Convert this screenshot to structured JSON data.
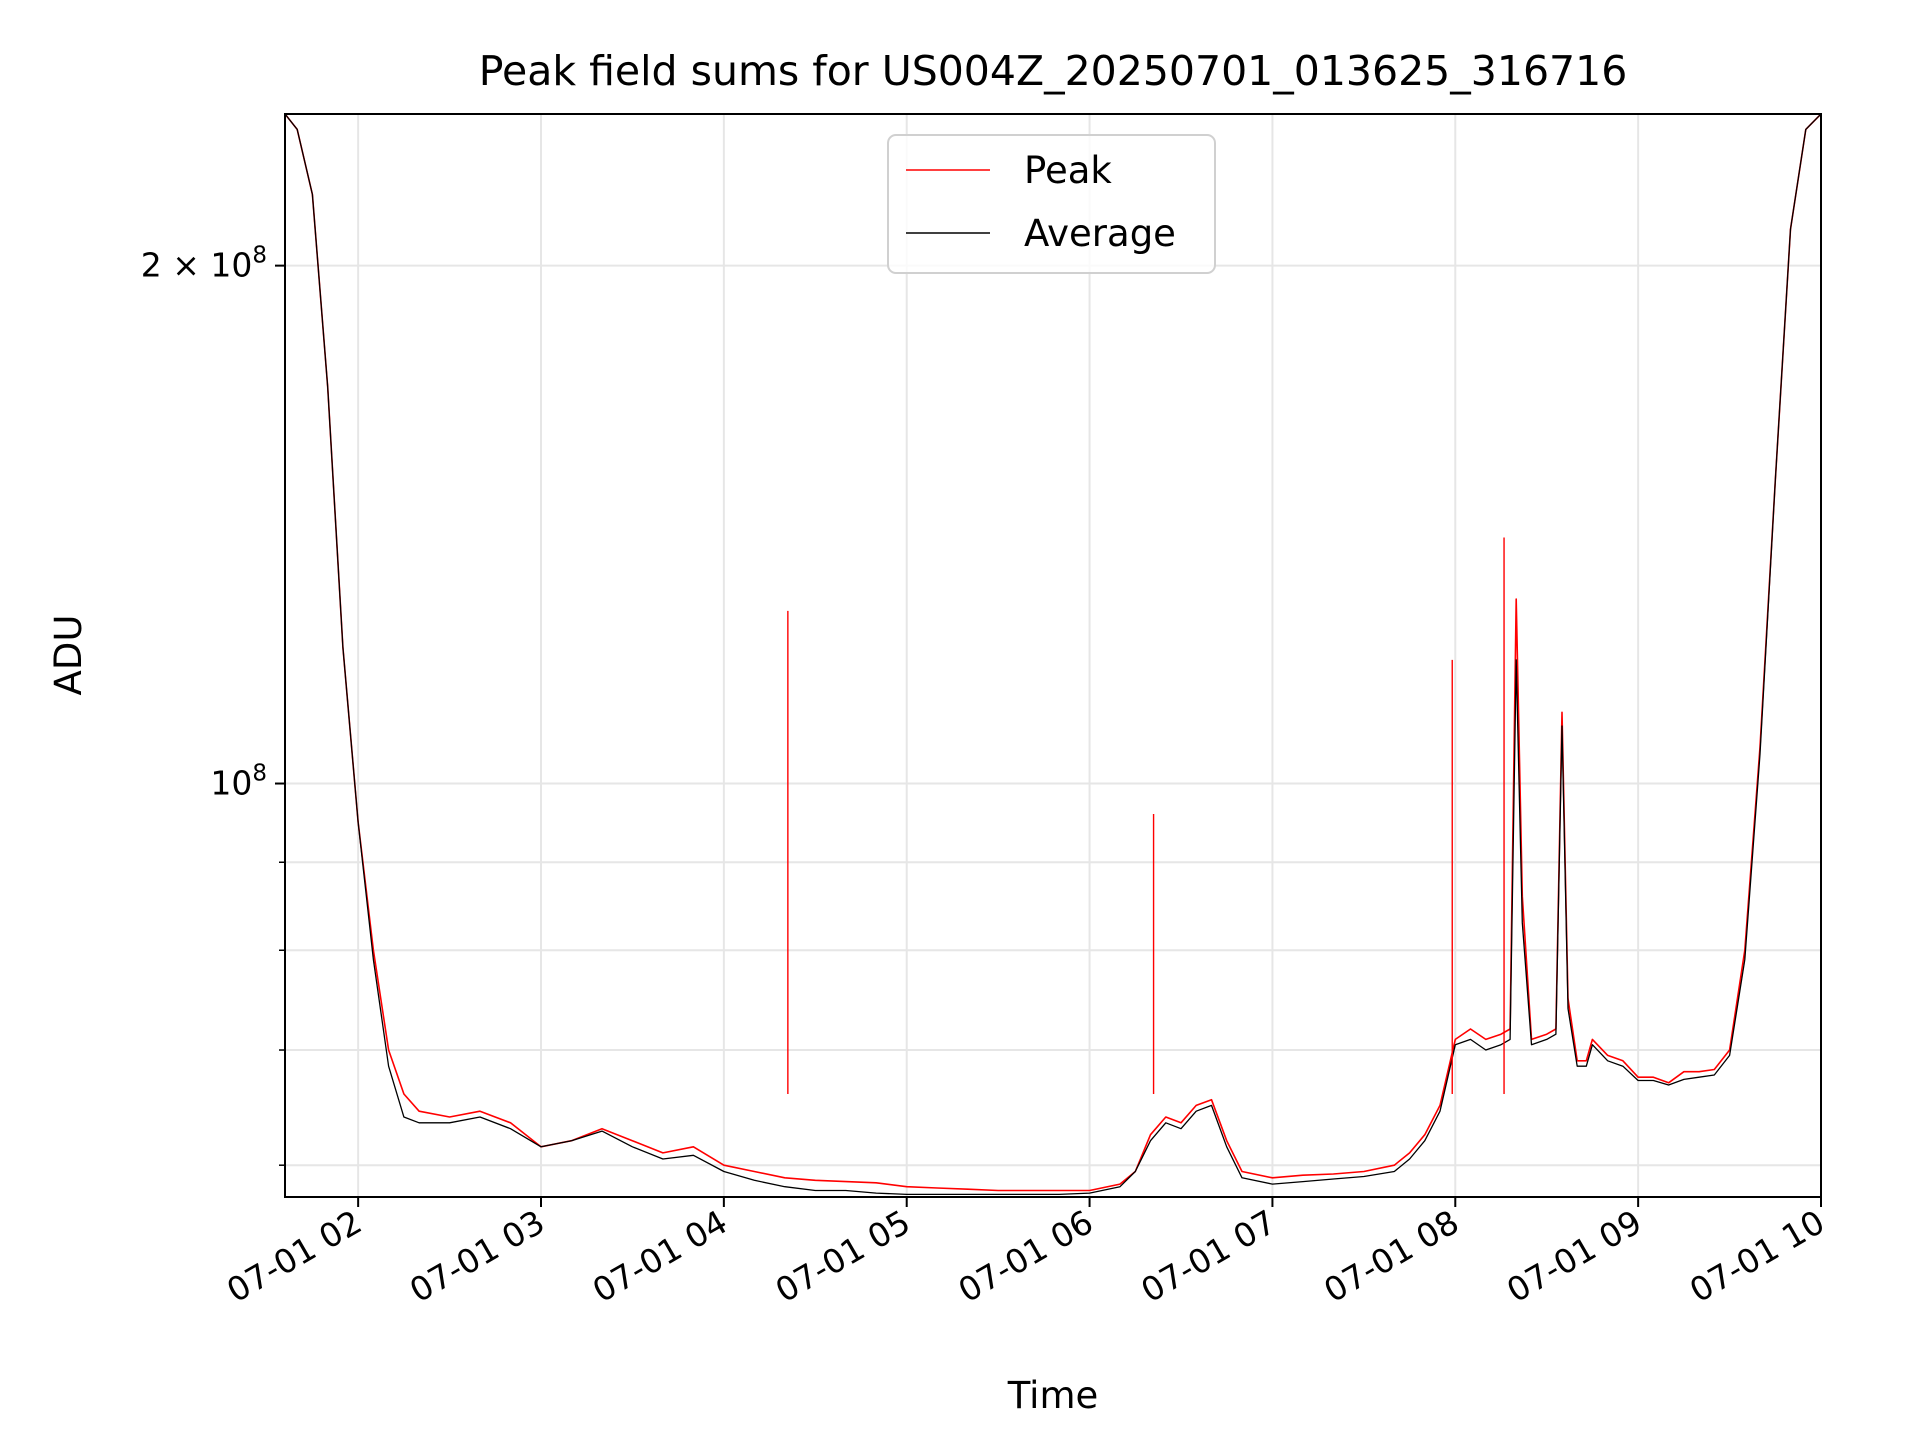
{
  "chart_data": {
    "type": "line",
    "title": "Peak field sums for US004Z_20250701_013625_316716",
    "xlabel": "Time",
    "ylabel": "ADU",
    "yscale": "log",
    "grid": true,
    "legend_position": "top-center",
    "xlim": [
      "07-01 01:36",
      "07-01 10:00"
    ],
    "ylim": [
      57500000,
      245000000
    ],
    "x_ticks": [
      "07-01 02:00",
      "07-01 03:00",
      "07-01 04:00",
      "07-01 05:00",
      "07-01 06:00",
      "07-01 07:00",
      "07-01 08:00",
      "07-01 09:00",
      "07-01 10:00"
    ],
    "x_tick_labels": [
      "07-01 02",
      "07-01 03",
      "07-01 04",
      "07-01 05",
      "07-01 06",
      "07-01 07",
      "07-01 08",
      "07-01 09",
      "07-01 10"
    ],
    "y_ticks_major": [
      100000000,
      200000000
    ],
    "y_tick_labels": {
      "base": "10",
      "major": [
        {
          "mantissa": "",
          "exp": "8"
        },
        {
          "mantissa": "2",
          "exp": "8"
        }
      ]
    },
    "y_ticks_minor": [
      60000000,
      70000000,
      80000000,
      90000000
    ],
    "series": [
      {
        "name": "Peak",
        "color": "#ff0000",
        "x": [
          "07-01 01:36",
          "07-01 01:40",
          "07-01 01:45",
          "07-01 01:50",
          "07-01 01:55",
          "07-01 02:00",
          "07-01 02:05",
          "07-01 02:10",
          "07-01 02:15",
          "07-01 02:20",
          "07-01 02:30",
          "07-01 02:40",
          "07-01 02:50",
          "07-01 03:00",
          "07-01 03:10",
          "07-01 03:20",
          "07-01 03:30",
          "07-01 03:40",
          "07-01 03:50",
          "07-01 04:00",
          "07-01 04:10",
          "07-01 04:20",
          "07-01 04:30",
          "07-01 04:40",
          "07-01 04:50",
          "07-01 05:00",
          "07-01 05:10",
          "07-01 05:20",
          "07-01 05:30",
          "07-01 05:40",
          "07-01 05:50",
          "07-01 06:00",
          "07-01 06:10",
          "07-01 06:15",
          "07-01 06:20",
          "07-01 06:25",
          "07-01 06:30",
          "07-01 06:35",
          "07-01 06:40",
          "07-01 06:45",
          "07-01 06:50",
          "07-01 07:00",
          "07-01 07:10",
          "07-01 07:20",
          "07-01 07:30",
          "07-01 07:40",
          "07-01 07:45",
          "07-01 07:50",
          "07-01 07:55",
          "07-01 08:00",
          "07-01 08:05",
          "07-01 08:10",
          "07-01 08:15",
          "07-01 08:18",
          "07-01 08:20",
          "07-01 08:22",
          "07-01 08:25",
          "07-01 08:30",
          "07-01 08:33",
          "07-01 08:35",
          "07-01 08:37",
          "07-01 08:40",
          "07-01 08:43",
          "07-01 08:45",
          "07-01 08:50",
          "07-01 08:55",
          "07-01 09:00",
          "07-01 09:05",
          "07-01 09:10",
          "07-01 09:15",
          "07-01 09:20",
          "07-01 09:25",
          "07-01 09:30",
          "07-01 09:35",
          "07-01 09:40",
          "07-01 09:45",
          "07-01 09:50",
          "07-01 09:55",
          "07-01 10:00"
        ],
        "y": [
          245000000,
          240000000,
          220000000,
          170000000,
          120000000,
          95000000,
          80000000,
          70000000,
          66000000,
          64500000,
          64000000,
          64500000,
          63500000,
          61500000,
          62000000,
          63000000,
          62000000,
          61000000,
          61500000,
          60000000,
          59500000,
          59000000,
          58800000,
          58700000,
          58600000,
          58300000,
          58200000,
          58100000,
          58000000,
          58000000,
          58000000,
          58000000,
          58500000,
          59500000,
          62500000,
          64000000,
          63500000,
          65000000,
          65500000,
          62000000,
          59500000,
          59000000,
          59200000,
          59300000,
          59500000,
          60000000,
          61000000,
          62500000,
          65000000,
          71000000,
          72000000,
          71000000,
          71500000,
          72000000,
          128000000,
          86000000,
          71000000,
          71500000,
          72000000,
          110000000,
          75000000,
          69000000,
          69000000,
          71000000,
          69500000,
          69000000,
          67500000,
          67500000,
          67000000,
          68000000,
          68000000,
          68200000,
          70000000,
          80000000,
          105000000,
          150000000,
          210000000,
          240000000,
          245000000
        ]
      },
      {
        "name": "Average",
        "color": "#000000",
        "x": [
          "07-01 01:36",
          "07-01 01:40",
          "07-01 01:45",
          "07-01 01:50",
          "07-01 01:55",
          "07-01 02:00",
          "07-01 02:05",
          "07-01 02:10",
          "07-01 02:15",
          "07-01 02:20",
          "07-01 02:30",
          "07-01 02:40",
          "07-01 02:50",
          "07-01 03:00",
          "07-01 03:10",
          "07-01 03:20",
          "07-01 03:30",
          "07-01 03:40",
          "07-01 03:50",
          "07-01 04:00",
          "07-01 04:10",
          "07-01 04:20",
          "07-01 04:30",
          "07-01 04:40",
          "07-01 04:50",
          "07-01 05:00",
          "07-01 05:10",
          "07-01 05:20",
          "07-01 05:30",
          "07-01 05:40",
          "07-01 05:50",
          "07-01 06:00",
          "07-01 06:10",
          "07-01 06:15",
          "07-01 06:20",
          "07-01 06:25",
          "07-01 06:30",
          "07-01 06:35",
          "07-01 06:40",
          "07-01 06:45",
          "07-01 06:50",
          "07-01 07:00",
          "07-01 07:10",
          "07-01 07:20",
          "07-01 07:30",
          "07-01 07:40",
          "07-01 07:45",
          "07-01 07:50",
          "07-01 07:55",
          "07-01 08:00",
          "07-01 08:05",
          "07-01 08:10",
          "07-01 08:15",
          "07-01 08:18",
          "07-01 08:20",
          "07-01 08:22",
          "07-01 08:25",
          "07-01 08:30",
          "07-01 08:33",
          "07-01 08:35",
          "07-01 08:37",
          "07-01 08:40",
          "07-01 08:43",
          "07-01 08:45",
          "07-01 08:50",
          "07-01 08:55",
          "07-01 09:00",
          "07-01 09:05",
          "07-01 09:10",
          "07-01 09:15",
          "07-01 09:20",
          "07-01 09:25",
          "07-01 09:30",
          "07-01 09:35",
          "07-01 09:40",
          "07-01 09:45",
          "07-01 09:50",
          "07-01 09:55",
          "07-01 10:00"
        ],
        "y": [
          245000000,
          240000000,
          220000000,
          170000000,
          120000000,
          95000000,
          79000000,
          68500000,
          64000000,
          63500000,
          63500000,
          64000000,
          63000000,
          61500000,
          62000000,
          62800000,
          61500000,
          60500000,
          60800000,
          59500000,
          58800000,
          58300000,
          58000000,
          58000000,
          57800000,
          57700000,
          57700000,
          57700000,
          57700000,
          57700000,
          57700000,
          57800000,
          58300000,
          59500000,
          62000000,
          63500000,
          63000000,
          64500000,
          65000000,
          61500000,
          59000000,
          58500000,
          58700000,
          58900000,
          59100000,
          59500000,
          60500000,
          62000000,
          64500000,
          70500000,
          71000000,
          70000000,
          70500000,
          71000000,
          118000000,
          83000000,
          70500000,
          71000000,
          71500000,
          108000000,
          74000000,
          68500000,
          68500000,
          70500000,
          69000000,
          68500000,
          67200000,
          67200000,
          66800000,
          67300000,
          67500000,
          67700000,
          69500000,
          79000000,
          104000000,
          150000000,
          210000000,
          240000000,
          245000000
        ]
      }
    ],
    "annotations": [
      {
        "series": "Peak",
        "x": "07-01 04:21",
        "y": 126000000
      },
      {
        "series": "Peak",
        "x": "07-01 06:21",
        "y": 96000000
      },
      {
        "series": "Peak",
        "x": "07-01 07:59",
        "y": 118000000
      },
      {
        "series": "Peak",
        "x": "07-01 08:16",
        "y": 139000000
      }
    ]
  }
}
